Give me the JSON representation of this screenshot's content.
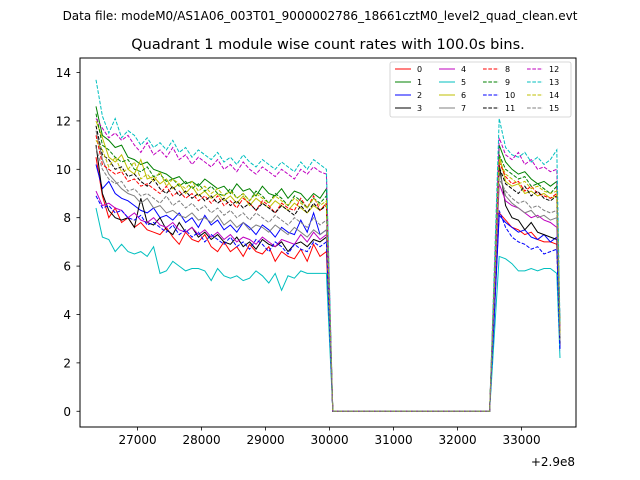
{
  "chart_data": {
    "type": "line",
    "suptitle": "Data file: modeM0/AS1A06_003T01_9000002786_18661cztM0_level2_quad_clean.evt",
    "title": "Quadrant 1 module wise count rates with 100.0s bins.",
    "xlabel": "",
    "ylabel": "",
    "x_offset_label": "+2.9e8",
    "xlim": [
      26100,
      33850
    ],
    "ylim": [
      -0.65,
      14.6
    ],
    "x_ticks": [
      27000,
      28000,
      29000,
      30000,
      31000,
      32000,
      33000
    ],
    "x_tick_labels": [
      "27000",
      "28000",
      "29000",
      "30000",
      "31000",
      "32000",
      "33000"
    ],
    "y_ticks": [
      0,
      2,
      4,
      6,
      8,
      10,
      12,
      14
    ],
    "y_tick_labels": [
      "0",
      "2",
      "4",
      "6",
      "8",
      "10",
      "12",
      "14"
    ],
    "legend_position": "top-right",
    "legend_columns": 4,
    "gap_start_x": 30050,
    "gap_end_x": 32500,
    "segment1_x": [
      26350,
      26450,
      26550,
      26650,
      26750,
      26850,
      26950,
      27050,
      27150,
      27250,
      27350,
      27450,
      27550,
      27650,
      27750,
      27850,
      27950,
      28050,
      28150,
      28250,
      28350,
      28450,
      28550,
      28650,
      28750,
      28850,
      28950,
      29050,
      29150,
      29250,
      29350,
      29450,
      29550,
      29650,
      29750,
      29850,
      29950
    ],
    "segment2_x": [
      32650,
      32750,
      32850,
      32950,
      33050,
      33150,
      33250,
      33350,
      33450,
      33550
    ],
    "series": [
      {
        "name": "0",
        "color": "#ff0000",
        "dash": "solid",
        "seg1": [
          10.5,
          8.9,
          8.0,
          8.4,
          7.8,
          8.0,
          7.6,
          7.8,
          7.5,
          7.4,
          7.3,
          7.6,
          7.2,
          6.9,
          7.4,
          7.1,
          7.0,
          7.3,
          6.8,
          6.6,
          7.0,
          6.6,
          6.8,
          6.4,
          6.9,
          6.6,
          6.5,
          6.8,
          6.2,
          6.6,
          6.4,
          6.3,
          6.7,
          6.2,
          6.9,
          6.4,
          6.6
        ],
        "seg2": [
          8.2,
          7.9,
          7.6,
          7.5,
          7.3,
          7.4,
          7.1,
          7.0,
          7.0,
          6.9
        ],
        "end": 2.7
      },
      {
        "name": "1",
        "color": "#008000",
        "dash": "solid",
        "seg1": [
          12.6,
          11.4,
          11.2,
          10.9,
          11.0,
          10.5,
          10.4,
          10.2,
          10.3,
          10.0,
          9.9,
          9.8,
          9.6,
          9.7,
          9.4,
          9.5,
          9.3,
          9.6,
          9.4,
          9.2,
          9.3,
          9.0,
          9.4,
          9.1,
          9.2,
          8.9,
          9.3,
          9.0,
          8.9,
          9.2,
          8.8,
          9.1,
          9.0,
          8.7,
          9.0,
          8.8,
          9.2
        ],
        "seg2": [
          11.0,
          10.3,
          10.0,
          9.8,
          9.9,
          9.6,
          9.4,
          9.5,
          9.3,
          9.5
        ],
        "end": 3.4
      },
      {
        "name": "2",
        "color": "#0000ff",
        "dash": "solid",
        "seg1": [
          10.2,
          9.2,
          9.5,
          9.0,
          8.8,
          8.7,
          8.5,
          8.3,
          8.2,
          8.4,
          8.0,
          8.1,
          7.9,
          8.2,
          7.8,
          8.0,
          7.6,
          8.1,
          7.7,
          7.9,
          7.5,
          7.7,
          7.4,
          7.8,
          7.6,
          7.3,
          7.7,
          7.5,
          7.2,
          7.6,
          7.4,
          7.3,
          7.9,
          7.4,
          8.2,
          7.3,
          7.5
        ],
        "seg2": [
          8.1,
          7.8,
          7.6,
          7.4,
          7.5,
          7.2,
          7.1,
          7.3,
          7.0,
          7.2
        ],
        "end": 2.6
      },
      {
        "name": "3",
        "color": "#000000",
        "dash": "solid",
        "seg1": [
          11.0,
          9.0,
          8.3,
          8.0,
          7.9,
          8.0,
          7.6,
          8.8,
          7.8,
          7.7,
          8.0,
          7.5,
          7.3,
          7.8,
          7.4,
          7.6,
          7.2,
          7.4,
          7.1,
          7.3,
          7.0,
          6.9,
          7.2,
          6.8,
          7.0,
          6.7,
          7.1,
          6.9,
          6.8,
          7.0,
          6.6,
          6.9,
          7.0,
          6.8,
          7.1,
          7.0,
          7.2
        ],
        "seg2": [
          10.2,
          8.5,
          8.0,
          7.9,
          7.5,
          7.8,
          7.4,
          7.3,
          7.2,
          7.1
        ],
        "end": 2.8
      },
      {
        "name": "4",
        "color": "#bf00bf",
        "dash": "solid",
        "seg1": [
          9.1,
          8.5,
          8.6,
          8.4,
          8.3,
          8.0,
          8.2,
          7.9,
          7.8,
          8.0,
          7.7,
          7.6,
          7.8,
          7.5,
          7.4,
          7.6,
          7.3,
          7.5,
          7.2,
          7.4,
          7.1,
          7.3,
          7.0,
          7.2,
          7.1,
          6.9,
          7.2,
          7.0,
          6.8,
          7.1,
          7.0,
          6.9,
          7.3,
          7.0,
          7.4,
          7.1,
          7.3
        ],
        "seg2": [
          9.4,
          8.7,
          8.5,
          8.4,
          8.2,
          8.0,
          8.1,
          7.9,
          7.8,
          7.6
        ],
        "end": 2.9
      },
      {
        "name": "5",
        "color": "#00bfbf",
        "dash": "solid",
        "seg1": [
          8.4,
          7.2,
          7.1,
          6.6,
          6.9,
          6.6,
          6.5,
          6.6,
          6.4,
          6.8,
          5.7,
          5.8,
          6.2,
          6.0,
          5.8,
          5.9,
          5.9,
          5.8,
          5.4,
          5.9,
          5.6,
          5.5,
          5.6,
          5.4,
          5.5,
          5.8,
          5.6,
          5.3,
          5.7,
          5.0,
          5.6,
          5.5,
          5.8,
          5.7,
          5.7,
          5.7,
          5.7
        ],
        "seg2": [
          6.4,
          6.3,
          6.1,
          5.8,
          5.8,
          5.9,
          5.8,
          5.9,
          5.9,
          5.7
        ],
        "end": 2.2
      },
      {
        "name": "6",
        "color": "#bfbf00",
        "dash": "solid",
        "seg1": [
          12.0,
          11.3,
          10.5,
          10.3,
          10.6,
          10.0,
          9.8,
          10.4,
          9.6,
          9.7,
          9.4,
          9.6,
          9.2,
          9.4,
          9.0,
          9.3,
          8.9,
          9.1,
          8.8,
          9.0,
          8.7,
          8.9,
          8.6,
          8.9,
          8.5,
          8.8,
          8.6,
          8.4,
          8.7,
          8.5,
          8.3,
          8.6,
          8.4,
          8.2,
          8.5,
          8.3,
          8.6
        ],
        "seg2": [
          10.6,
          9.5,
          9.3,
          9.4,
          9.0,
          9.1,
          8.9,
          9.0,
          8.8,
          8.9
        ],
        "end": 3.1
      },
      {
        "name": "7",
        "color": "#808080",
        "dash": "solid",
        "seg1": [
          11.6,
          10.4,
          9.8,
          9.5,
          9.2,
          9.0,
          8.9,
          8.6,
          8.8,
          8.4,
          8.5,
          8.2,
          8.3,
          8.1,
          8.0,
          8.2,
          7.9,
          8.0,
          7.8,
          8.1,
          7.7,
          7.9,
          7.6,
          7.8,
          7.5,
          7.7,
          7.6,
          7.4,
          7.7,
          7.5,
          7.3,
          7.6,
          7.4,
          7.2,
          7.5,
          7.3,
          7.5
        ],
        "seg2": [
          9.9,
          8.9,
          8.6,
          8.4,
          8.2,
          8.3,
          8.0,
          8.1,
          7.9,
          8.0
        ],
        "end": 2.9
      },
      {
        "name": "8",
        "color": "#ff0000",
        "dash": "dashed",
        "seg1": [
          11.4,
          10.2,
          10.0,
          9.8,
          9.9,
          9.5,
          9.6,
          9.3,
          9.4,
          9.2,
          9.0,
          9.3,
          8.9,
          9.1,
          8.8,
          9.0,
          8.7,
          8.9,
          8.6,
          8.9,
          8.5,
          8.7,
          8.4,
          8.8,
          8.6,
          8.3,
          8.7,
          8.5,
          8.2,
          8.6,
          8.4,
          8.3,
          8.8,
          8.4,
          8.9,
          8.3,
          8.6
        ],
        "seg2": [
          10.3,
          9.7,
          9.4,
          9.5,
          9.1,
          9.3,
          9.0,
          8.9,
          8.8,
          9.0
        ],
        "end": 3.2
      },
      {
        "name": "9",
        "color": "#008000",
        "dash": "dashed",
        "seg1": [
          12.3,
          11.0,
          10.8,
          10.5,
          10.3,
          10.4,
          10.0,
          9.9,
          10.1,
          9.7,
          9.8,
          9.5,
          9.6,
          9.3,
          9.5,
          9.2,
          9.4,
          9.1,
          9.3,
          9.0,
          8.9,
          9.2,
          8.8,
          9.0,
          8.7,
          9.1,
          8.9,
          8.6,
          9.0,
          8.8,
          8.5,
          8.9,
          8.7,
          8.4,
          8.8,
          8.6,
          8.9
        ],
        "seg2": [
          10.6,
          10.0,
          9.8,
          9.6,
          9.7,
          9.3,
          9.4,
          9.2,
          9.0,
          9.3
        ],
        "end": 3.3
      },
      {
        "name": "10",
        "color": "#0000ff",
        "dash": "dashed",
        "seg1": [
          8.9,
          8.4,
          8.5,
          8.2,
          8.3,
          8.0,
          7.9,
          8.1,
          7.7,
          7.8,
          7.6,
          7.4,
          7.7,
          7.3,
          7.5,
          7.2,
          7.4,
          7.0,
          7.3,
          7.1,
          6.9,
          7.2,
          6.8,
          7.0,
          6.7,
          7.1,
          6.9,
          6.6,
          7.0,
          6.8,
          6.5,
          6.9,
          6.7,
          6.6,
          7.0,
          6.8,
          7.0
        ],
        "seg2": [
          8.3,
          7.6,
          7.2,
          7.0,
          6.9,
          6.7,
          6.8,
          6.5,
          6.6,
          6.7
        ],
        "end": 2.5
      },
      {
        "name": "11",
        "color": "#000000",
        "dash": "dashed",
        "seg1": [
          11.8,
          10.6,
          10.4,
          10.0,
          10.1,
          9.7,
          9.8,
          9.5,
          9.3,
          9.6,
          9.2,
          9.0,
          9.3,
          8.9,
          9.1,
          8.8,
          9.0,
          8.7,
          8.9,
          8.6,
          8.8,
          8.5,
          8.7,
          8.4,
          8.6,
          8.3,
          8.6,
          8.4,
          8.2,
          8.5,
          8.3,
          8.1,
          8.5,
          8.2,
          8.6,
          8.3,
          8.5
        ],
        "seg2": [
          10.1,
          9.4,
          9.2,
          9.0,
          9.3,
          8.9,
          9.1,
          8.8,
          8.7,
          8.9
        ],
        "end": 3.0
      },
      {
        "name": "12",
        "color": "#bf00bf",
        "dash": "dashed",
        "seg1": [
          12.1,
          11.7,
          11.3,
          11.5,
          11.2,
          11.4,
          11.0,
          10.7,
          11.1,
          10.6,
          10.8,
          10.5,
          10.9,
          10.4,
          10.6,
          10.2,
          10.5,
          10.3,
          10.1,
          10.4,
          10.0,
          10.2,
          9.9,
          10.3,
          10.0,
          9.8,
          10.1,
          9.9,
          9.7,
          10.0,
          9.8,
          9.6,
          10.0,
          9.8,
          10.1,
          9.9,
          9.8
        ],
        "seg2": [
          11.3,
          10.6,
          10.4,
          10.7,
          10.2,
          10.4,
          10.0,
          10.1,
          9.9,
          10.0
        ],
        "end": 3.4
      },
      {
        "name": "13",
        "color": "#00bfbf",
        "dash": "dashed",
        "seg1": [
          13.7,
          12.2,
          11.5,
          12.1,
          11.3,
          11.6,
          11.4,
          11.0,
          11.3,
          10.9,
          11.1,
          10.8,
          11.2,
          10.7,
          10.9,
          10.5,
          10.8,
          10.6,
          10.4,
          10.7,
          10.3,
          10.5,
          10.2,
          10.6,
          10.3,
          10.1,
          10.4,
          10.2,
          10.0,
          10.3,
          10.1,
          9.9,
          10.3,
          10.0,
          10.4,
          10.2,
          10.0
        ],
        "seg2": [
          12.1,
          10.9,
          10.6,
          10.5,
          10.7,
          10.3,
          10.5,
          10.2,
          10.4,
          10.8
        ],
        "end": 3.6
      },
      {
        "name": "14",
        "color": "#bfbf00",
        "dash": "dashed",
        "seg1": [
          11.2,
          10.8,
          10.1,
          10.5,
          9.9,
          10.0,
          10.3,
          9.6,
          9.8,
          9.5,
          9.9,
          9.3,
          9.6,
          9.4,
          9.2,
          9.5,
          9.1,
          9.3,
          9.0,
          9.2,
          8.9,
          9.1,
          8.8,
          9.0,
          8.7,
          9.0,
          8.8,
          8.6,
          8.9,
          8.7,
          8.5,
          8.8,
          8.6,
          8.4,
          8.8,
          8.5,
          8.7
        ],
        "seg2": [
          10.4,
          9.8,
          9.6,
          9.4,
          9.5,
          9.2,
          9.3,
          9.1,
          9.0,
          9.1
        ],
        "end": 3.2
      },
      {
        "name": "15",
        "color": "#808080",
        "dash": "dashed",
        "seg1": [
          10.9,
          10.0,
          9.6,
          9.4,
          9.5,
          9.1,
          9.2,
          8.9,
          9.0,
          8.8,
          8.6,
          8.9,
          8.5,
          8.7,
          8.4,
          8.6,
          8.3,
          8.5,
          8.2,
          8.4,
          8.1,
          8.3,
          8.0,
          8.2,
          7.9,
          8.2,
          8.0,
          7.8,
          8.1,
          7.9,
          7.7,
          8.0,
          7.8,
          7.6,
          8.0,
          7.7,
          7.9
        ],
        "seg2": [
          9.6,
          9.1,
          8.8,
          8.6,
          8.7,
          8.4,
          8.5,
          8.3,
          8.2,
          8.3
        ],
        "end": 3.0
      }
    ]
  }
}
